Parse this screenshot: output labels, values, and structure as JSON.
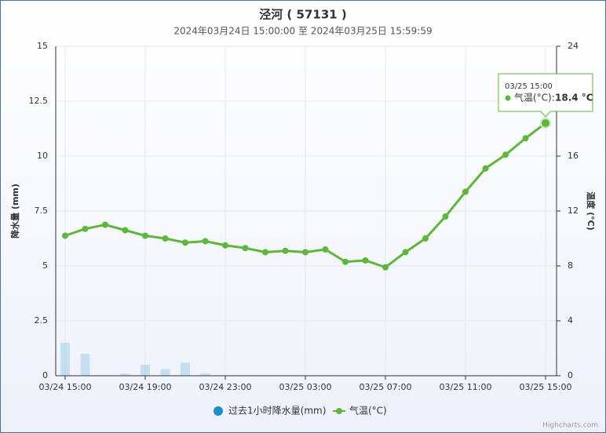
{
  "chart_data": {
    "type": "combo",
    "title": "泾河 ( 57131 )",
    "subtitle": "2024年03月24日 15:00:00 至 2024年03月25日 15:59:59",
    "categories": [
      "03/24 15:00",
      null,
      null,
      null,
      "03/24 19:00",
      null,
      null,
      null,
      "03/24 23:00",
      null,
      null,
      null,
      "03/25 03:00",
      null,
      null,
      null,
      "03/25 07:00",
      null,
      null,
      null,
      "03/25 11:00",
      null,
      null,
      null,
      "03/25 15:00"
    ],
    "series": [
      {
        "name": "过去1小时降水量(mm)",
        "color": "#1a8fc9",
        "kind": "bar",
        "axis": "y",
        "values": [
          1.5,
          1.0,
          0,
          0.1,
          0.5,
          0.3,
          0.6,
          0.1,
          0,
          0,
          0,
          0,
          0,
          0,
          0,
          0,
          0,
          0,
          0,
          0,
          0,
          0,
          0,
          0,
          0
        ]
      },
      {
        "name": "气温(°C)",
        "color": "#5db83a",
        "kind": "line",
        "axis": "y2",
        "values": [
          10.2,
          10.7,
          11.0,
          10.6,
          10.2,
          10.0,
          9.7,
          9.8,
          9.5,
          9.3,
          9.0,
          9.1,
          9.0,
          9.2,
          8.3,
          8.4,
          7.9,
          9.0,
          10.0,
          11.6,
          13.4,
          15.1,
          16.1,
          17.3,
          18.4
        ]
      }
    ],
    "y_label": "降水量 (mm)",
    "y2_label": "温度 (°C)",
    "ylim": [
      0,
      15
    ],
    "yticks": [
      0,
      2.5,
      5,
      7.5,
      10,
      12.5,
      15
    ],
    "y2lim": [
      0,
      24
    ],
    "y2ticks": [
      0,
      4,
      8,
      12,
      16,
      20,
      24
    ],
    "grid": true,
    "tooltip": {
      "time": "03/25 15:00",
      "label": "气温(°C):",
      "value": "18.4 °C"
    },
    "credits": "Highcharts.com"
  }
}
